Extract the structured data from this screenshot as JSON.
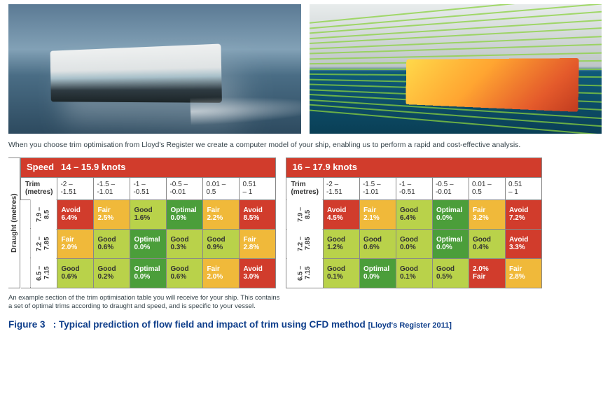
{
  "intro_text": "When you choose trim optimisation from Lloyd's Register we create a computer model of your ship, enabling us to perform a rapid and cost-effective analysis.",
  "draught_axis_label": "Draught (metres)",
  "trim_header_label": "Trim (metres)",
  "speed_label": "Speed",
  "footnote_line1": "An example section of the trim optimisation table you will receive for your ship. This contains",
  "footnote_line2": "a set of optimal trims according to draught and speed, and is specific to your vessel.",
  "caption_prefix": "Figure 3",
  "caption_text": ": Typical prediction of flow field and impact of trim using CFD method",
  "caption_citation": "[Lloyd's Register 2011]",
  "rating_colors": {
    "Optimal": "#4b9e3a",
    "Good": "#b9d24a",
    "Fair": "#f0b93a",
    "Avoid": "#d13c2c"
  },
  "trim_ranges": [
    {
      "a": "-2 –",
      "b": "-1.51"
    },
    {
      "a": "-1.5 –",
      "b": "-1.01"
    },
    {
      "a": "-1 –",
      "b": "-0.51"
    },
    {
      "a": "-0.5 –",
      "b": "-0.01"
    },
    {
      "a": "0.01 –",
      "b": "0.5"
    },
    {
      "a": "0.51",
      "b": "– 1"
    }
  ],
  "draught_ranges": [
    "7.9 – 8.5",
    "7.2 – 7.85",
    "6.5 – 7.15"
  ],
  "tables": [
    {
      "speed": "14 – 15.9 knots",
      "show_speed_label": true,
      "show_draught_axis": true,
      "rows": [
        [
          {
            "r": "Avoid",
            "p": "6.4%"
          },
          {
            "r": "Fair",
            "p": "2.5%"
          },
          {
            "r": "Good",
            "p": "1.6%"
          },
          {
            "r": "Optimal",
            "p": "0.0%"
          },
          {
            "r": "Fair",
            "p": "2.2%"
          },
          {
            "r": "Avoid",
            "p": "8.5%"
          }
        ],
        [
          {
            "r": "Fair",
            "p": "2.0%"
          },
          {
            "r": "Good",
            "p": "0.6%"
          },
          {
            "r": "Optimal",
            "p": "0.0%"
          },
          {
            "r": "Good",
            "p": "0.3%"
          },
          {
            "r": "Good",
            "p": "0.9%"
          },
          {
            "r": "Fair",
            "p": "2.8%"
          }
        ],
        [
          {
            "r": "Good",
            "p": "0.6%"
          },
          {
            "r": "Good",
            "p": "0.2%"
          },
          {
            "r": "Optimal",
            "p": "0.0%"
          },
          {
            "r": "Good",
            "p": "0.6%"
          },
          {
            "r": "Fair",
            "p": "2.0%"
          },
          {
            "r": "Avoid",
            "p": "3.0%"
          }
        ]
      ]
    },
    {
      "speed": "16 – 17.9 knots",
      "show_speed_label": false,
      "show_draught_axis": false,
      "rows": [
        [
          {
            "r": "Avoid",
            "p": "4.5%"
          },
          {
            "r": "Fair",
            "p": "2.1%"
          },
          {
            "r": "Good",
            "p": "6.4%"
          },
          {
            "r": "Optimal",
            "p": "0.0%"
          },
          {
            "r": "Fair",
            "p": "3.2%"
          },
          {
            "r": "Avoid",
            "p": "7.2%"
          }
        ],
        [
          {
            "r": "Good",
            "p": "1.2%"
          },
          {
            "r": "Good",
            "p": "0.6%"
          },
          {
            "r": "Good",
            "p": "0.0%"
          },
          {
            "r": "Optimal",
            "p": "0.0%"
          },
          {
            "r": "Good",
            "p": "0.4%"
          },
          {
            "r": "Avoid",
            "p": "3.3%"
          }
        ],
        [
          {
            "r": "Good",
            "p": "0.1%"
          },
          {
            "r": "Optimal",
            "p": "0.0%"
          },
          {
            "r": "Good",
            "p": "0.1%"
          },
          {
            "r": "Good",
            "p": "0.5%"
          },
          {
            "r": "2.0%",
            "p": "Fair",
            "special": true
          },
          {
            "r": "Fair",
            "p": "2.8%"
          }
        ]
      ]
    }
  ]
}
